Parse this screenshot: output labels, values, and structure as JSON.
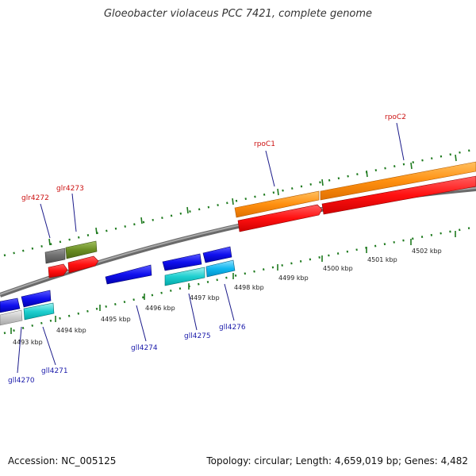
{
  "title": "Gloeobacter violaceus PCC 7421, complete genome",
  "footer": {
    "accession": "Accession: NC_005125",
    "topology": "Topology: circular; Length: 4,659,019 bp; Genes: 4,482"
  },
  "colors": {
    "backbone": "#808080",
    "tick_mark": "#1e7a1e",
    "label_top": "#cc1111",
    "label_bottom": "#1a1aaa"
  },
  "tick_labels": [
    "4493 kbp",
    "4494 kbp",
    "4495 kbp",
    "4496 kbp",
    "4497 kbp",
    "4498 kbp",
    "4499 kbp",
    "4500 kbp",
    "4501 kbp",
    "4502 kbp"
  ],
  "genes_top": [
    {
      "label": "glr4272",
      "color": "#6e6e6e"
    },
    {
      "label": "glr4273",
      "color": "#6b8e23"
    },
    {
      "label": "rpoC1",
      "color": "#ff8c00"
    },
    {
      "label": "rpoC2",
      "color": "#ff8c00"
    }
  ],
  "genes_bottom": [
    {
      "label": "gll4270",
      "color": "#0000ee"
    },
    {
      "label": "gll4271",
      "color": "#00cccc"
    },
    {
      "label": "gll4274",
      "color": "#0000ee"
    },
    {
      "label": "gll4275",
      "color": "#00cccc"
    },
    {
      "label": "gll4276",
      "color": "#00bbee"
    }
  ]
}
